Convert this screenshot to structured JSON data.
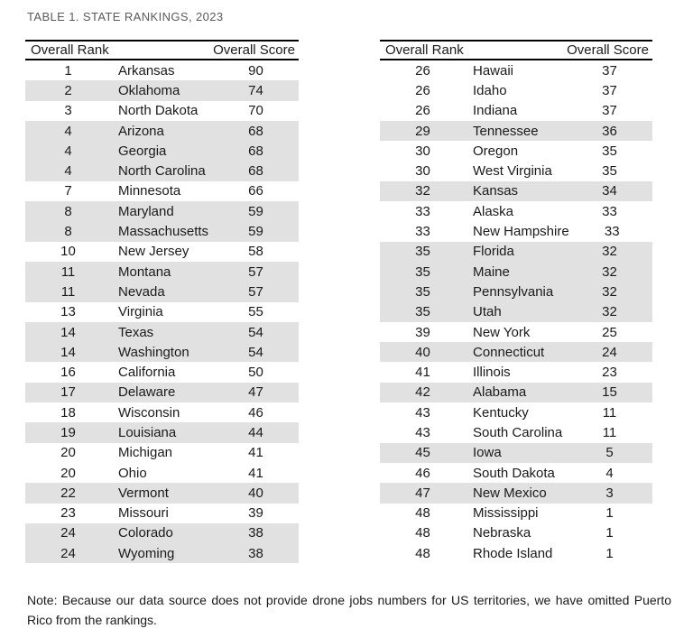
{
  "title": "TABLE 1. STATE RANKINGS, 2023",
  "note": "Note: Because our data source does not provide drone jobs numbers for US territories, we have omitted Puerto Rico from the rankings.",
  "colors": {
    "text": "#1a1a1a",
    "title": "#5a5a5a",
    "row_shade": "#e1e1e1",
    "border": "#000000",
    "page_bg": "#ffffff"
  },
  "tables": [
    {
      "id": "left",
      "header": {
        "rank_label": "Overall Rank",
        "score_label": "Overall Score"
      },
      "rows": [
        {
          "rank": "1",
          "state": "Arkansas",
          "score": "90",
          "shaded": false
        },
        {
          "rank": "2",
          "state": "Oklahoma",
          "score": "74",
          "shaded": true
        },
        {
          "rank": "3",
          "state": "North Dakota",
          "score": "70",
          "shaded": false
        },
        {
          "rank": "4",
          "state": "Arizona",
          "score": "68",
          "shaded": true
        },
        {
          "rank": "4",
          "state": "Georgia",
          "score": "68",
          "shaded": true
        },
        {
          "rank": "4",
          "state": "North Carolina",
          "score": "68",
          "shaded": true
        },
        {
          "rank": "7",
          "state": "Minnesota",
          "score": "66",
          "shaded": false
        },
        {
          "rank": "8",
          "state": "Maryland",
          "score": "59",
          "shaded": true
        },
        {
          "rank": "8",
          "state": "Massachusetts",
          "score": "59",
          "shaded": true
        },
        {
          "rank": "10",
          "state": "New Jersey",
          "score": "58",
          "shaded": false
        },
        {
          "rank": "11",
          "state": "Montana",
          "score": "57",
          "shaded": true
        },
        {
          "rank": "11",
          "state": "Nevada",
          "score": "57",
          "shaded": true
        },
        {
          "rank": "13",
          "state": "Virginia",
          "score": "55",
          "shaded": false
        },
        {
          "rank": "14",
          "state": "Texas",
          "score": "54",
          "shaded": true
        },
        {
          "rank": "14",
          "state": "Washington",
          "score": "54",
          "shaded": true
        },
        {
          "rank": "16",
          "state": "California",
          "score": "50",
          "shaded": false
        },
        {
          "rank": "17",
          "state": "Delaware",
          "score": "47",
          "shaded": true
        },
        {
          "rank": "18",
          "state": "Wisconsin",
          "score": "46",
          "shaded": false
        },
        {
          "rank": "19",
          "state": "Louisiana",
          "score": "44",
          "shaded": true
        },
        {
          "rank": "20",
          "state": "Michigan",
          "score": "41",
          "shaded": false
        },
        {
          "rank": "20",
          "state": "Ohio",
          "score": "41",
          "shaded": false
        },
        {
          "rank": "22",
          "state": "Vermont",
          "score": "40",
          "shaded": true
        },
        {
          "rank": "23",
          "state": "Missouri",
          "score": "39",
          "shaded": false
        },
        {
          "rank": "24",
          "state": "Colorado",
          "score": "38",
          "shaded": true
        },
        {
          "rank": "24",
          "state": "Wyoming",
          "score": "38",
          "shaded": true
        }
      ]
    },
    {
      "id": "right",
      "header": {
        "rank_label": "Overall Rank",
        "score_label": "Overall Score"
      },
      "rows": [
        {
          "rank": "26",
          "state": "Hawaii",
          "score": "37",
          "shaded": false
        },
        {
          "rank": "26",
          "state": "Idaho",
          "score": "37",
          "shaded": false
        },
        {
          "rank": "26",
          "state": "Indiana",
          "score": "37",
          "shaded": false
        },
        {
          "rank": "29",
          "state": "Tennessee",
          "score": "36",
          "shaded": true
        },
        {
          "rank": "30",
          "state": "Oregon",
          "score": "35",
          "shaded": false
        },
        {
          "rank": "30",
          "state": "West Virginia",
          "score": "35",
          "shaded": false
        },
        {
          "rank": "32",
          "state": "Kansas",
          "score": "34",
          "shaded": true
        },
        {
          "rank": "33",
          "state": "Alaska",
          "score": "33",
          "shaded": false
        },
        {
          "rank": "33",
          "state": "New Hampshire",
          "score": "33",
          "shaded": false
        },
        {
          "rank": "35",
          "state": "Florida",
          "score": "32",
          "shaded": true
        },
        {
          "rank": "35",
          "state": "Maine",
          "score": "32",
          "shaded": true
        },
        {
          "rank": "35",
          "state": "Pennsylvania",
          "score": "32",
          "shaded": true
        },
        {
          "rank": "35",
          "state": "Utah",
          "score": "32",
          "shaded": true
        },
        {
          "rank": "39",
          "state": "New York",
          "score": "25",
          "shaded": false
        },
        {
          "rank": "40",
          "state": "Connecticut",
          "score": "24",
          "shaded": true
        },
        {
          "rank": "41",
          "state": "Illinois",
          "score": "23",
          "shaded": false
        },
        {
          "rank": "42",
          "state": "Alabama",
          "score": "15",
          "shaded": true
        },
        {
          "rank": "43",
          "state": "Kentucky",
          "score": "11",
          "shaded": false
        },
        {
          "rank": "43",
          "state": "South Carolina",
          "score": "11",
          "shaded": false
        },
        {
          "rank": "45",
          "state": "Iowa",
          "score": "5",
          "shaded": true
        },
        {
          "rank": "46",
          "state": "South Dakota",
          "score": "4",
          "shaded": false
        },
        {
          "rank": "47",
          "state": "New Mexico",
          "score": "3",
          "shaded": true
        },
        {
          "rank": "48",
          "state": "Mississippi",
          "score": "1",
          "shaded": false
        },
        {
          "rank": "48",
          "state": "Nebraska",
          "score": "1",
          "shaded": false
        },
        {
          "rank": "48",
          "state": "Rhode Island",
          "score": "1",
          "shaded": false
        }
      ]
    }
  ]
}
